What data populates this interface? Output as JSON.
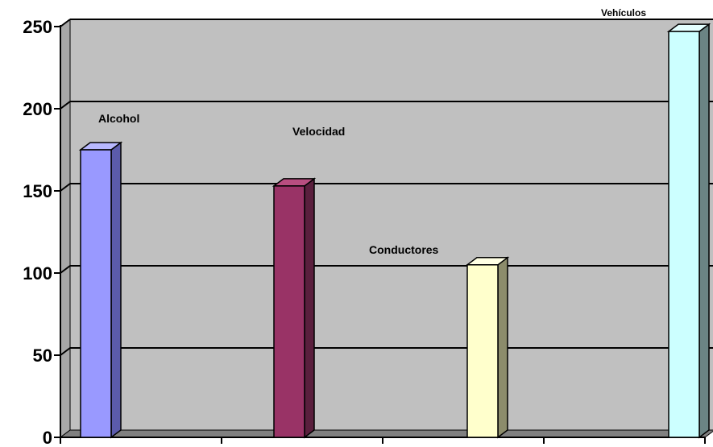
{
  "chart_data": {
    "type": "bar",
    "title": "",
    "xlabel": "",
    "ylabel": "",
    "categories": [
      "Alcohol",
      "Velocidad",
      "Conductores",
      "Vehículos"
    ],
    "values": [
      175,
      153,
      105,
      247
    ],
    "data_labels": [
      "Alcohol",
      "Velocidad",
      "Conductores",
      "Vehículos"
    ],
    "ylim": [
      0,
      250
    ],
    "yticks": [
      "0",
      "50",
      "100",
      "150",
      "200",
      "250"
    ],
    "grid": true,
    "legend": "none",
    "colors": {
      "plot_background": "#c0c0c0",
      "plot_side_wall": "#a8a8a8",
      "floor": "#808080",
      "gridline": "#000000",
      "bars": [
        {
          "front": "#9999ff",
          "side": "#5b5bab",
          "top": "#b8b8ff"
        },
        {
          "front": "#993366",
          "side": "#5a1f3d",
          "top": "#b84e80"
        },
        {
          "front": "#ffffcc",
          "side": "#8c8c6b",
          "top": "#ffffe4"
        },
        {
          "front": "#ccffff",
          "side": "#6b8484",
          "top": "#e4ffff"
        }
      ]
    }
  }
}
